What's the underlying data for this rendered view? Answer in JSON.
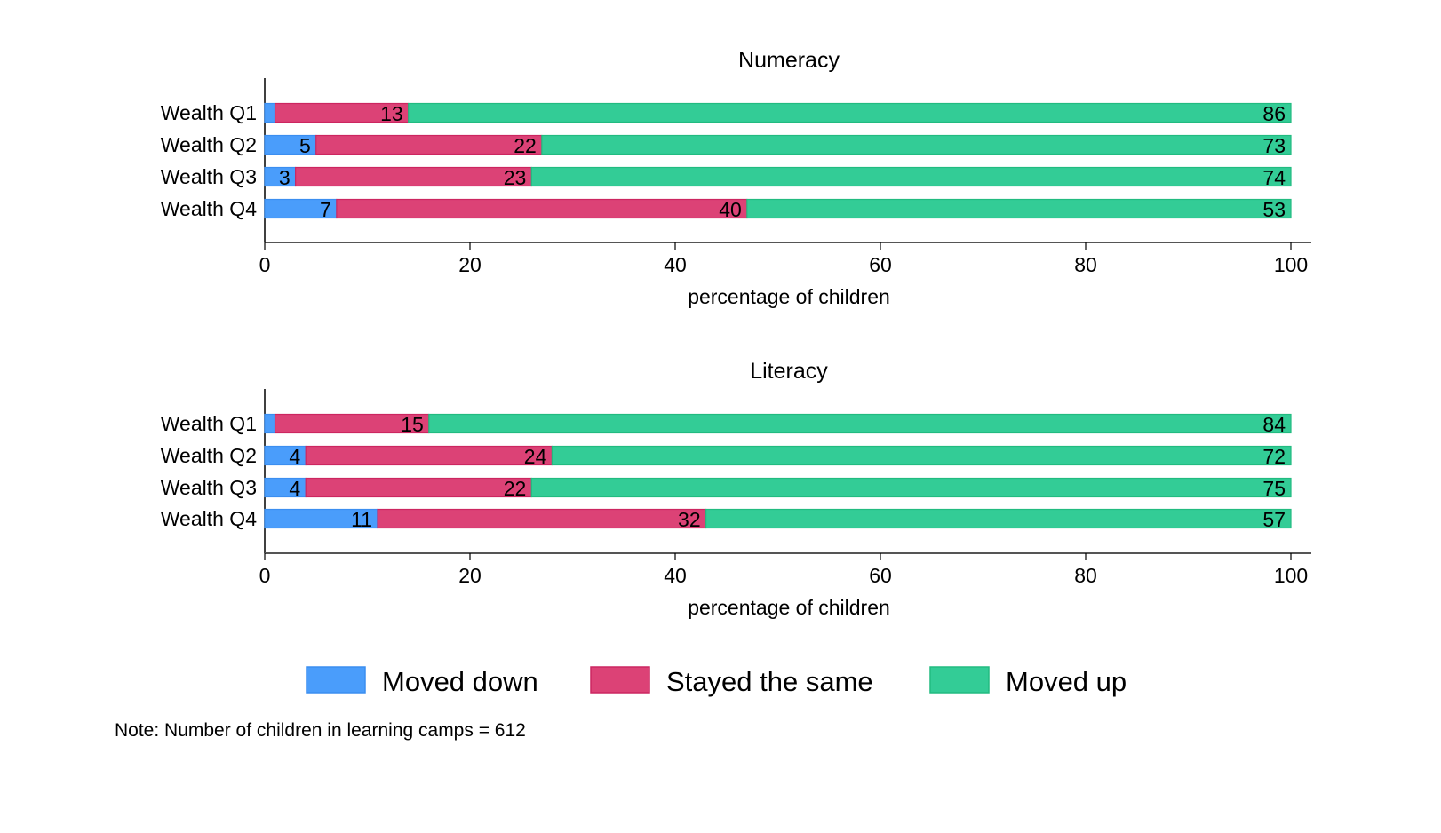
{
  "chart_data": [
    {
      "type": "bar",
      "orientation": "horizontal",
      "stacked": true,
      "title": "Numeracy",
      "xlabel": "percentage of children",
      "ylabel": "",
      "xlim": [
        0,
        100
      ],
      "xticks": [
        0,
        20,
        40,
        60,
        80,
        100
      ],
      "grid": false,
      "categories": [
        "Wealth Q1",
        "Wealth Q2",
        "Wealth Q3",
        "Wealth Q4"
      ],
      "series": [
        {
          "name": "Moved down",
          "values": [
            1,
            5,
            3,
            7
          ],
          "labels": [
            null,
            "5",
            "3",
            "7"
          ]
        },
        {
          "name": "Stayed the same",
          "values": [
            13,
            22,
            23,
            40
          ],
          "labels": [
            "13",
            "22",
            "23",
            "40"
          ]
        },
        {
          "name": "Moved up",
          "values": [
            86,
            73,
            74,
            53
          ],
          "labels": [
            "86",
            "73",
            "74",
            "53"
          ]
        }
      ]
    },
    {
      "type": "bar",
      "orientation": "horizontal",
      "stacked": true,
      "title": "Literacy",
      "xlabel": "percentage of children",
      "ylabel": "",
      "xlim": [
        0,
        100
      ],
      "xticks": [
        0,
        20,
        40,
        60,
        80,
        100
      ],
      "grid": false,
      "categories": [
        "Wealth Q1",
        "Wealth Q2",
        "Wealth Q3",
        "Wealth Q4"
      ],
      "series": [
        {
          "name": "Moved down",
          "values": [
            1,
            4,
            4,
            11
          ],
          "labels": [
            null,
            "4",
            "4",
            "11"
          ]
        },
        {
          "name": "Stayed the same",
          "values": [
            15,
            24,
            22,
            32
          ],
          "labels": [
            "15",
            "24",
            "22",
            "32"
          ]
        },
        {
          "name": "Moved up",
          "values": [
            84,
            72,
            75,
            57
          ],
          "labels": [
            "84",
            "72",
            "75",
            "57"
          ]
        }
      ]
    }
  ],
  "legend": {
    "placement": "bottom",
    "items": [
      {
        "label": "Moved down",
        "color": "#4a9dfb"
      },
      {
        "label": "Stayed the same",
        "color": "#dc4276"
      },
      {
        "label": "Moved up",
        "color": "#33cc96"
      }
    ]
  },
  "colors": {
    "moved_down": "#4a9dfb",
    "moved_down_edge": "#3b8ef0",
    "stayed_same": "#dc4276",
    "stayed_same_edge": "#cc2660",
    "moved_up": "#33cc96",
    "moved_up_edge": "#22bb80",
    "axis": "#555555"
  },
  "note": "Note: Number of children in learning camps = 612"
}
